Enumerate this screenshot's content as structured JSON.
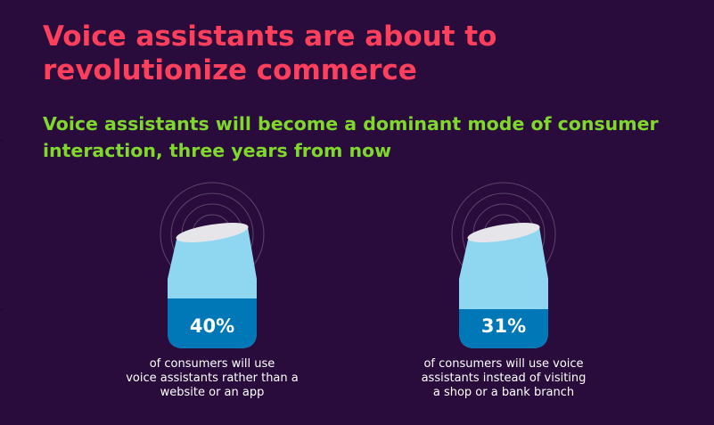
{
  "title": "Voice assistants are about to revolutionize commerce",
  "subtitle": "Voice assistants will become a dominant mode of consumer interaction, three years from now",
  "stats": [
    {
      "percent": "40%",
      "value_fraction": 0.4,
      "caption_lines": [
        "of consumers will use",
        "voice assistants rather than a",
        "website or an app"
      ]
    },
    {
      "percent": "31%",
      "value_fraction": 0.31,
      "caption_lines": [
        "of consumers will use voice",
        "assistants instead of visiting",
        "a shop or a bank branch"
      ]
    }
  ],
  "colors": {
    "background": "#2a0c3c",
    "title": "#ff3f5c",
    "subtitle": "#7fd92b",
    "device_body": "#8fd6f0",
    "device_fill": "#0077b6",
    "device_top": "#e6e6ea",
    "rings": "#5a4668"
  },
  "icons": [
    "voice-assistant-speaker-icon",
    "sound-waves-icon"
  ]
}
